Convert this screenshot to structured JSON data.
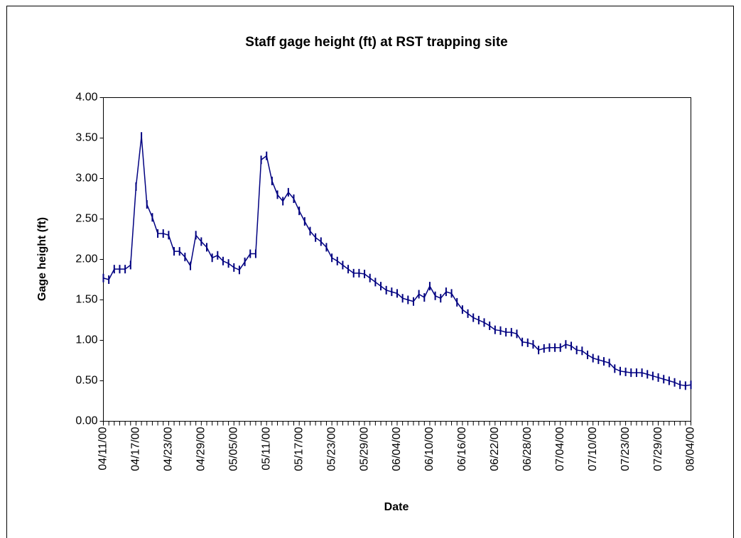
{
  "chart_data": {
    "type": "line",
    "title": "Staff gage height (ft) at RST trapping site",
    "xlabel": "Date",
    "ylabel": "Gage height (ft)",
    "categories": [
      "04/11/00",
      null,
      null,
      null,
      null,
      null,
      "04/17/00",
      null,
      null,
      null,
      null,
      null,
      "04/23/00",
      null,
      null,
      null,
      null,
      null,
      "04/29/00",
      null,
      null,
      null,
      null,
      null,
      "05/05/00",
      null,
      null,
      null,
      null,
      null,
      "05/11/00",
      null,
      null,
      null,
      null,
      null,
      "05/17/00",
      null,
      null,
      null,
      null,
      null,
      "05/23/00",
      null,
      null,
      null,
      null,
      null,
      "05/29/00",
      null,
      null,
      null,
      null,
      null,
      "06/04/00",
      null,
      null,
      null,
      null,
      null,
      "06/10/00",
      null,
      null,
      null,
      null,
      null,
      "06/16/00",
      null,
      null,
      null,
      null,
      null,
      "06/22/00",
      null,
      null,
      null,
      null,
      null,
      "06/28/00",
      null,
      null,
      null,
      null,
      null,
      "07/04/00",
      null,
      null,
      null,
      null,
      null,
      "07/10/00",
      null,
      null,
      null,
      null,
      null,
      "07/23/00",
      null,
      null,
      null,
      null,
      null,
      "07/29/00",
      null,
      null,
      null,
      null,
      null,
      "08/04/00"
    ],
    "series": [
      {
        "name": "Gage height",
        "color": "#000080",
        "values": [
          1.77,
          1.75,
          1.88,
          1.88,
          1.88,
          1.93,
          2.9,
          3.52,
          2.68,
          2.52,
          2.32,
          2.32,
          2.3,
          2.1,
          2.1,
          2.03,
          1.92,
          2.3,
          2.22,
          2.15,
          2.02,
          2.05,
          1.98,
          1.95,
          1.9,
          1.87,
          1.97,
          2.07,
          2.07,
          3.23,
          3.28,
          2.97,
          2.8,
          2.72,
          2.83,
          2.75,
          2.6,
          2.47,
          2.35,
          2.27,
          2.22,
          2.15,
          2.02,
          1.98,
          1.93,
          1.88,
          1.83,
          1.83,
          1.82,
          1.77,
          1.72,
          1.67,
          1.62,
          1.6,
          1.58,
          1.52,
          1.5,
          1.48,
          1.57,
          1.53,
          1.67,
          1.55,
          1.52,
          1.6,
          1.58,
          1.47,
          1.38,
          1.33,
          1.28,
          1.25,
          1.22,
          1.18,
          1.13,
          1.12,
          1.1,
          1.1,
          1.08,
          0.98,
          0.97,
          0.95,
          0.88,
          0.9,
          0.91,
          0.91,
          0.91,
          0.95,
          0.93,
          0.88,
          0.87,
          0.82,
          0.78,
          0.76,
          0.74,
          0.72,
          0.65,
          0.62,
          0.61,
          0.6,
          0.6,
          0.6,
          0.58,
          0.56,
          0.54,
          0.52,
          0.5,
          0.48,
          0.45,
          0.44,
          0.45
        ]
      }
    ],
    "ylim": [
      0,
      4
    ],
    "yticks": [
      {
        "value": 0,
        "label": "0.00"
      },
      {
        "value": 0.5,
        "label": "0.50"
      },
      {
        "value": 1,
        "label": "1.00"
      },
      {
        "value": 1.5,
        "label": "1.50"
      },
      {
        "value": 2,
        "label": "2.00"
      },
      {
        "value": 2.5,
        "label": "2.50"
      },
      {
        "value": 3,
        "label": "3.00"
      },
      {
        "value": 3.5,
        "label": "3.50"
      },
      {
        "value": 4,
        "label": "4.00"
      }
    ],
    "grid": false
  }
}
